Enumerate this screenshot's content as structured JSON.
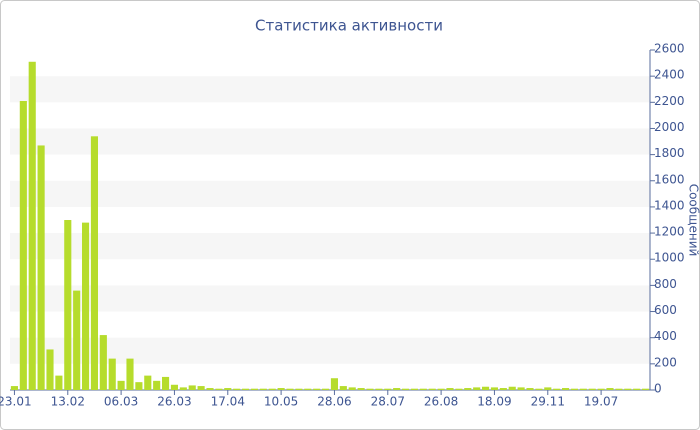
{
  "chart_data": {
    "type": "bar",
    "title": "Статистика активности",
    "y_axis_label": "Сообщений",
    "categories": [
      "23.01",
      null,
      null,
      null,
      null,
      null,
      "13.02",
      null,
      null,
      null,
      null,
      null,
      "06.03",
      null,
      null,
      null,
      null,
      null,
      "26.03",
      null,
      null,
      null,
      null,
      null,
      "17.04",
      null,
      null,
      null,
      null,
      null,
      "10.05",
      null,
      null,
      null,
      null,
      null,
      "28.06",
      null,
      null,
      null,
      null,
      null,
      "28.07",
      null,
      null,
      null,
      null,
      null,
      "26.08",
      null,
      null,
      null,
      null,
      null,
      "18.09",
      null,
      null,
      null,
      null,
      null,
      "29.11",
      null,
      null,
      null,
      null,
      null,
      "19.07",
      null,
      null,
      null,
      null,
      null
    ],
    "values": [
      30,
      2210,
      2510,
      1870,
      310,
      110,
      1300,
      760,
      1280,
      1940,
      420,
      240,
      70,
      240,
      60,
      110,
      70,
      100,
      40,
      20,
      35,
      30,
      15,
      10,
      15,
      10,
      10,
      10,
      10,
      10,
      15,
      10,
      10,
      10,
      10,
      10,
      90,
      30,
      20,
      15,
      10,
      10,
      10,
      15,
      10,
      10,
      10,
      10,
      10,
      15,
      10,
      15,
      20,
      25,
      20,
      15,
      25,
      20,
      15,
      10,
      20,
      10,
      15,
      10,
      10,
      10,
      10,
      15,
      10,
      10,
      10,
      10
    ],
    "color": "#b6dc2c",
    "ylim": [
      0,
      2600
    ],
    "yticks": [
      0,
      200,
      400,
      600,
      800,
      1000,
      1200,
      1400,
      1600,
      1800,
      2000,
      2200,
      2400,
      2600
    ],
    "y_axis_side": "right",
    "grid": true
  }
}
